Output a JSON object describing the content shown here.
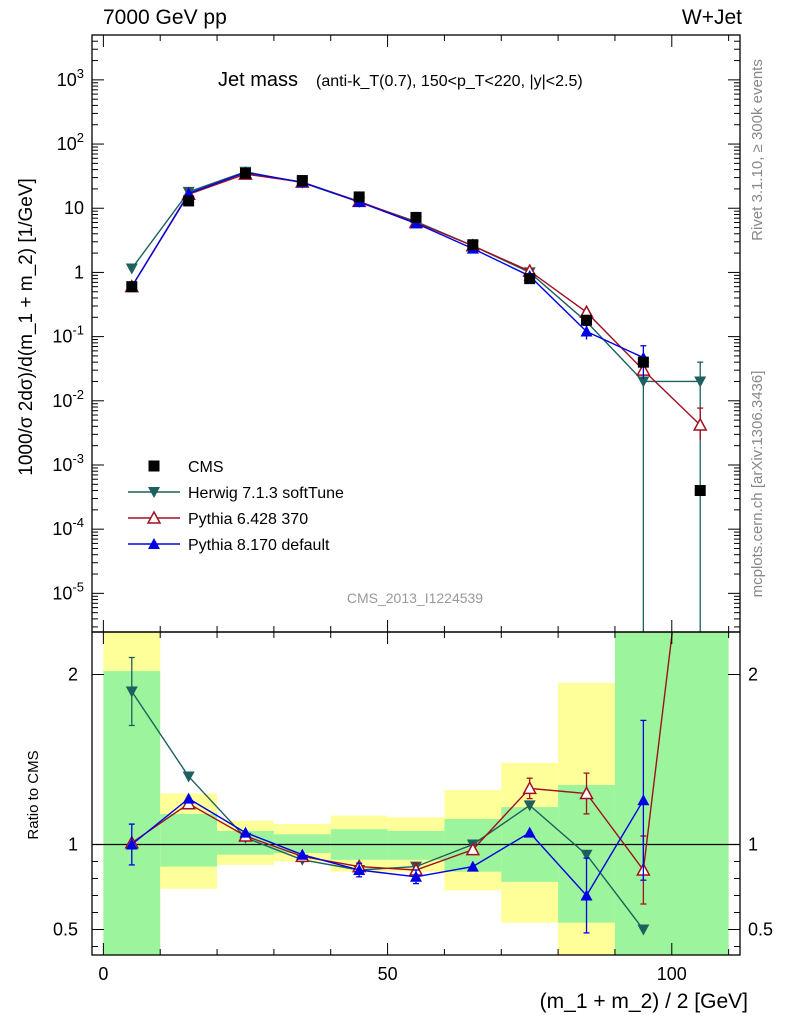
{
  "header": {
    "energy_label": "7000 GeV pp",
    "process_label": "W+Jet"
  },
  "side_labels": {
    "rivet": "Rivet 3.1.10, ≥ 300k events",
    "mcplots": "mcplots.cern.ch [arXiv:1306.3436]"
  },
  "watermark": "CMS_2013_I1224539",
  "colors": {
    "cms": "#000000",
    "herwig": "#1e5f5f",
    "pythia6": "#a01020",
    "pythia8": "#0000e6",
    "band_inner": "#9cf59c",
    "band_outer": "#ffff99"
  },
  "chart_data": [
    {
      "type": "line",
      "title": "Jet mass",
      "title_sub": "(anti-k_T(0.7), 150<p_T<220, |y|<2.5)",
      "ylabel": "1000/σ 2dσ)/d(m_1 + m_2) [1/GeV]",
      "yscale": "log",
      "ylim": [
        2.5e-06,
        5000
      ],
      "xlim": [
        -2,
        112
      ],
      "y_ticks": [
        "10^-5",
        "10^-4",
        "10^-3",
        "10^-2",
        "10^-1",
        "1",
        "10",
        "10^2",
        "10^3"
      ],
      "legend_placement": "lower-left",
      "x": [
        5,
        15,
        25,
        35,
        45,
        55,
        65,
        75,
        85,
        95,
        105
      ],
      "series": [
        {
          "name": "CMS",
          "marker": "square",
          "values": [
            0.6,
            13,
            35,
            27,
            15,
            7.2,
            2.7,
            0.8,
            0.18,
            0.04,
            0.0004
          ]
        },
        {
          "name": "Herwig 7.1.3 softTune",
          "marker": "triangle-down",
          "values": [
            1.15,
            18,
            37,
            25,
            12.5,
            6.2,
            2.6,
            1.0,
            0.17,
            0.02,
            0.02
          ],
          "errors": [
            [
              5,
              0.0,
              0.0
            ],
            [
              95,
              0.02,
              0.02
            ],
            [
              105,
              0.02,
              0.02
            ]
          ]
        },
        {
          "name": "Pythia 6.428 370",
          "marker": "triangle-up-open",
          "values": [
            0.6,
            16.5,
            34,
            25.5,
            12.8,
            6.0,
            2.6,
            1.05,
            0.24,
            0.03,
            0.0042
          ],
          "errors": [
            [
              105,
              0.0017,
              0.0035
            ]
          ]
        },
        {
          "name": "Pythia 8.170 default",
          "marker": "triangle-up",
          "values": [
            0.6,
            17,
            36,
            25.5,
            12.5,
            5.8,
            2.35,
            0.88,
            0.12,
            0.047,
            null
          ],
          "errors": [
            [
              85,
              0.03,
              0.03
            ],
            [
              95,
              0.025,
              0.025
            ]
          ]
        }
      ]
    },
    {
      "type": "line",
      "ylabel": "Ratio to CMS",
      "xlabel": "(m_1 + m_2) / 2 [GeV]",
      "ylim": [
        0.35,
        2.25
      ],
      "xlim": [
        -2,
        112
      ],
      "x_ticks": [
        0,
        50,
        100
      ],
      "y_ticks": [
        0.5,
        1,
        2
      ],
      "reference_line": 1,
      "bands": [
        {
          "x0": 0,
          "x1": 10,
          "inner": [
            0,
            2.02
          ],
          "outer": [
            0,
            2.5
          ]
        },
        {
          "x0": 10,
          "x1": 20,
          "inner": [
            0.87,
            1.18
          ],
          "outer": [
            0.74,
            1.3
          ]
        },
        {
          "x0": 20,
          "x1": 30,
          "inner": [
            0.94,
            1.08
          ],
          "outer": [
            0.88,
            1.14
          ]
        },
        {
          "x0": 30,
          "x1": 40,
          "inner": [
            0.95,
            1.06
          ],
          "outer": [
            0.9,
            1.12
          ]
        },
        {
          "x0": 40,
          "x1": 50,
          "inner": [
            0.91,
            1.09
          ],
          "outer": [
            0.84,
            1.17
          ]
        },
        {
          "x0": 50,
          "x1": 60,
          "inner": [
            0.91,
            1.08
          ],
          "outer": [
            0.84,
            1.16
          ]
        },
        {
          "x0": 60,
          "x1": 70,
          "inner": [
            0.84,
            1.15
          ],
          "outer": [
            0.73,
            1.32
          ]
        },
        {
          "x0": 70,
          "x1": 80,
          "inner": [
            0.78,
            1.22
          ],
          "outer": [
            0.54,
            1.48
          ]
        },
        {
          "x0": 80,
          "x1": 90,
          "inner": [
            0.54,
            1.35
          ],
          "outer": [
            0.33,
            1.95
          ]
        },
        {
          "x0": 90,
          "x1": 110,
          "inner": [
            0,
            2.5
          ],
          "outer": [
            0,
            2.5
          ]
        }
      ],
      "series": [
        {
          "name": "Herwig 7.1.3 softTune",
          "x": [
            5,
            15,
            25,
            35,
            45,
            55,
            65,
            75,
            85,
            95
          ],
          "values": [
            1.9,
            1.4,
            1.04,
            0.91,
            0.85,
            0.87,
            1.0,
            1.23,
            0.94,
            0.5
          ],
          "errors": [
            [
              5,
              0.2,
              0.2
            ]
          ]
        },
        {
          "name": "Pythia 6.428 370",
          "x": [
            5,
            15,
            25,
            35,
            45,
            55,
            65,
            75,
            85,
            95,
            105
          ],
          "values": [
            1.01,
            1.24,
            1.05,
            0.93,
            0.87,
            0.85,
            0.97,
            1.33,
            1.3,
            0.85,
            3.6
          ],
          "errors": [
            [
              55,
              0.04,
              0.04
            ],
            [
              75,
              0.06,
              0.06
            ],
            [
              85,
              0.12,
              0.12
            ],
            [
              95,
              0.2,
              0.2
            ]
          ]
        },
        {
          "name": "Pythia 8.170 default",
          "x": [
            5,
            15,
            25,
            35,
            45,
            55,
            65,
            75,
            85,
            95
          ],
          "values": [
            1.0,
            1.27,
            1.07,
            0.94,
            0.85,
            0.81,
            0.87,
            1.07,
            0.7,
            1.26
          ],
          "errors": [
            [
              5,
              0.12,
              0.12
            ],
            [
              45,
              0.04,
              0.04
            ],
            [
              55,
              0.04,
              0.04
            ],
            [
              85,
              0.22,
              0.22
            ],
            [
              95,
              0.47,
              0.47
            ]
          ]
        }
      ]
    }
  ]
}
